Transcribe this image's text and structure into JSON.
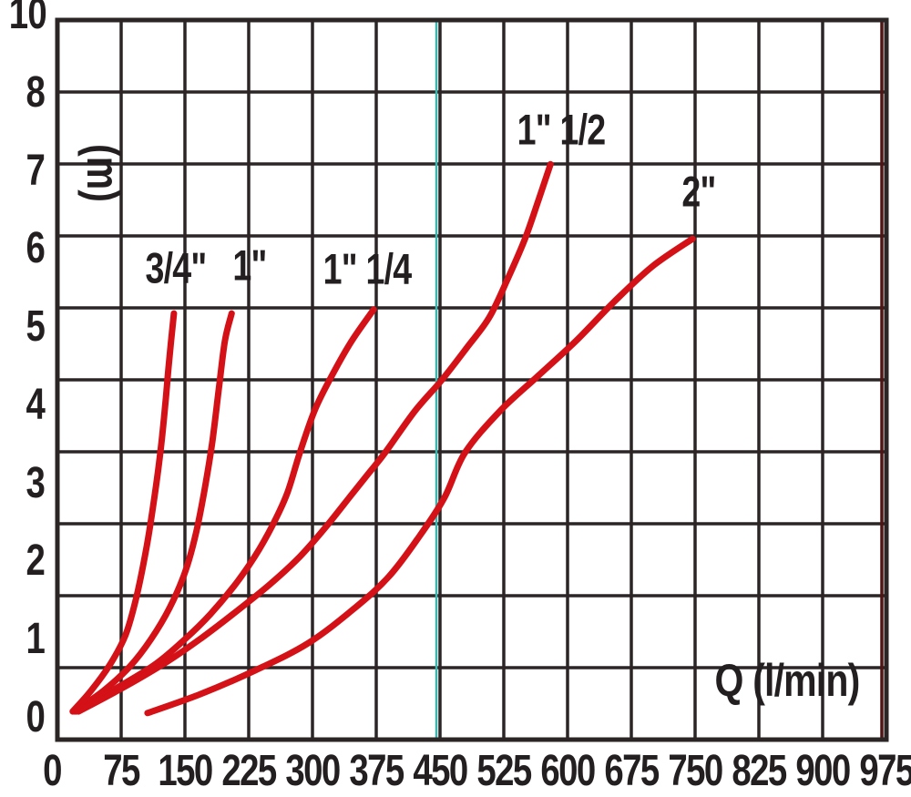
{
  "colors": {
    "background": "#ffffff",
    "text": "#231f20",
    "grid": "#2b2526",
    "curve_red": "#d31116",
    "teal_guide": "#3cb5ae",
    "right_border_dark_red": "#4d1414"
  },
  "y_axis": {
    "unit_label": "(m)",
    "tick_labels": [
      "10",
      "8",
      "7",
      "6",
      "5",
      "4",
      "3",
      "2",
      "1",
      "0"
    ]
  },
  "x_axis": {
    "unit_label": "Q (l/min)",
    "tick_labels": [
      "0",
      "75",
      "150",
      "225",
      "300",
      "375",
      "450",
      "525",
      "600",
      "675",
      "750",
      "825",
      "900",
      "975"
    ]
  },
  "chart_data": {
    "type": "line",
    "title": "",
    "xlabel": "Q (l/min)",
    "ylabel": "(m)",
    "xlim": [
      0,
      975
    ],
    "ylim": [
      0,
      10
    ],
    "x_ticks": [
      0,
      75,
      150,
      225,
      300,
      375,
      450,
      525,
      600,
      675,
      750,
      825,
      900,
      975
    ],
    "y_ticks": [
      0,
      1,
      2,
      3,
      4,
      5,
      6,
      7,
      8,
      10
    ],
    "grid": true,
    "legend_position": "labels-on-curves",
    "guide_line": {
      "orientation": "vertical",
      "x": 450,
      "color_key": "teal_guide"
    },
    "series": [
      {
        "name": "3/4\"",
        "points": [
          [
            18,
            0.08
          ],
          [
            40,
            0.35
          ],
          [
            62,
            0.68
          ],
          [
            80,
            1.05
          ],
          [
            93,
            1.54
          ],
          [
            105,
            2.18
          ],
          [
            114,
            2.8
          ],
          [
            121,
            3.37
          ],
          [
            127,
            4.0
          ],
          [
            131,
            4.5
          ],
          [
            137,
            5.15
          ]
        ]
      },
      {
        "name": "1\"",
        "points": [
          [
            20,
            0.08
          ],
          [
            55,
            0.35
          ],
          [
            85,
            0.65
          ],
          [
            110,
            1.0
          ],
          [
            132,
            1.4
          ],
          [
            150,
            1.85
          ],
          [
            163,
            2.35
          ],
          [
            173,
            2.9
          ],
          [
            182,
            3.5
          ],
          [
            190,
            4.2
          ],
          [
            197,
            4.8
          ],
          [
            205,
            5.15
          ]
        ]
      },
      {
        "name": "1\" 1/4",
        "points": [
          [
            22,
            0.08
          ],
          [
            70,
            0.38
          ],
          [
            115,
            0.68
          ],
          [
            150,
            1.0
          ],
          [
            180,
            1.32
          ],
          [
            208,
            1.68
          ],
          [
            232,
            2.05
          ],
          [
            253,
            2.45
          ],
          [
            270,
            2.85
          ],
          [
            285,
            3.37
          ],
          [
            302,
            3.9
          ],
          [
            320,
            4.3
          ],
          [
            345,
            4.78
          ],
          [
            372,
            5.2
          ]
        ]
      },
      {
        "name": "1\" 1/2",
        "points": [
          [
            25,
            0.08
          ],
          [
            80,
            0.4
          ],
          [
            130,
            0.72
          ],
          [
            170,
            1.02
          ],
          [
            210,
            1.35
          ],
          [
            250,
            1.7
          ],
          [
            285,
            2.05
          ],
          [
            315,
            2.42
          ],
          [
            343,
            2.8
          ],
          [
            365,
            3.1
          ],
          [
            385,
            3.37
          ],
          [
            420,
            3.9
          ],
          [
            452,
            4.3
          ],
          [
            482,
            4.72
          ],
          [
            508,
            5.1
          ],
          [
            530,
            5.6
          ],
          [
            550,
            6.1
          ],
          [
            566,
            6.6
          ],
          [
            580,
            7.05
          ]
        ]
      },
      {
        "name": "2\"",
        "points": [
          [
            106,
            0.06
          ],
          [
            168,
            0.3
          ],
          [
            232,
            0.6
          ],
          [
            295,
            0.95
          ],
          [
            350,
            1.4
          ],
          [
            390,
            1.8
          ],
          [
            425,
            2.3
          ],
          [
            455,
            2.8
          ],
          [
            479,
            3.37
          ],
          [
            520,
            3.9
          ],
          [
            565,
            4.35
          ],
          [
            610,
            4.8
          ],
          [
            655,
            5.3
          ],
          [
            700,
            5.75
          ],
          [
            747,
            6.1
          ]
        ]
      }
    ],
    "curve_labels": [
      {
        "text": "3/4\"",
        "q": 139,
        "m": 5.73
      },
      {
        "text": "1\"",
        "q": 226,
        "m": 5.76
      },
      {
        "text": "1\" 1/4",
        "q": 364,
        "m": 5.72
      },
      {
        "text": "1\" 1/2",
        "q": 593,
        "m": 7.5
      },
      {
        "text": "2\"",
        "q": 754,
        "m": 6.7
      }
    ]
  }
}
